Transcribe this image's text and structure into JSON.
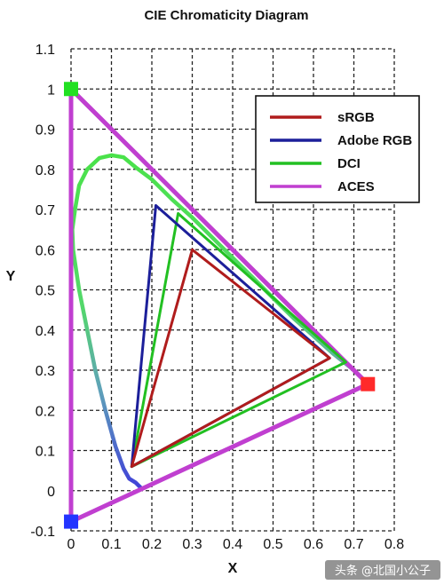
{
  "chart_data": {
    "type": "line",
    "title": "CIE Chromaticity Diagram",
    "xlabel": "X",
    "ylabel": "Y",
    "xlim": [
      0,
      0.8
    ],
    "ylim": [
      -0.1,
      1.1
    ],
    "x_ticks": [
      "0",
      "0.1",
      "0.2",
      "0.3",
      "0.4",
      "0.5",
      "0.6",
      "0.7",
      "0.8"
    ],
    "y_ticks": [
      "-0.1",
      "0",
      "0.1",
      "0.2",
      "0.3",
      "0.4",
      "0.5",
      "0.6",
      "0.7",
      "0.8",
      "0.9",
      "1",
      "1.1"
    ],
    "grid": true,
    "legend_position": "top-right",
    "spectral_locus": [
      [
        0.175,
        0.005
      ],
      [
        0.16,
        0.02
      ],
      [
        0.144,
        0.03
      ],
      [
        0.13,
        0.055
      ],
      [
        0.11,
        0.11
      ],
      [
        0.085,
        0.2
      ],
      [
        0.06,
        0.3
      ],
      [
        0.04,
        0.4
      ],
      [
        0.02,
        0.5
      ],
      [
        0.005,
        0.6
      ],
      [
        0.003,
        0.65
      ],
      [
        0.01,
        0.7
      ],
      [
        0.02,
        0.76
      ],
      [
        0.04,
        0.8
      ],
      [
        0.07,
        0.828
      ],
      [
        0.1,
        0.835
      ],
      [
        0.13,
        0.83
      ],
      [
        0.16,
        0.805
      ],
      [
        0.2,
        0.775
      ],
      [
        0.25,
        0.725
      ],
      [
        0.3,
        0.68
      ],
      [
        0.35,
        0.63
      ],
      [
        0.4,
        0.58
      ],
      [
        0.45,
        0.53
      ],
      [
        0.5,
        0.48
      ],
      [
        0.55,
        0.43
      ],
      [
        0.6,
        0.385
      ],
      [
        0.65,
        0.34
      ],
      [
        0.7,
        0.3
      ],
      [
        0.735,
        0.265
      ]
    ],
    "series": [
      {
        "name": "sRGB",
        "color": "#b01c1c",
        "points": [
          [
            0.64,
            0.33
          ],
          [
            0.3,
            0.6
          ],
          [
            0.15,
            0.06
          ]
        ]
      },
      {
        "name": "Adobe RGB",
        "color": "#1c1f9a",
        "points": [
          [
            0.64,
            0.33
          ],
          [
            0.21,
            0.71
          ],
          [
            0.15,
            0.06
          ]
        ]
      },
      {
        "name": "DCI",
        "color": "#22c022",
        "points": [
          [
            0.68,
            0.32
          ],
          [
            0.265,
            0.69
          ],
          [
            0.15,
            0.06
          ]
        ]
      },
      {
        "name": "ACES",
        "color": "#c03fd0",
        "points": [
          [
            0.7347,
            0.2653
          ],
          [
            0.0,
            1.0
          ],
          [
            0.0001,
            -0.077
          ]
        ]
      }
    ],
    "aces_markers": [
      {
        "color": "#ff2a2a",
        "point": [
          0.7347,
          0.2653
        ]
      },
      {
        "color": "#22e022",
        "point": [
          0.0,
          1.0
        ]
      },
      {
        "color": "#2234ff",
        "point": [
          0.0001,
          -0.077
        ]
      }
    ]
  },
  "watermark": "头条 @北国小公子"
}
